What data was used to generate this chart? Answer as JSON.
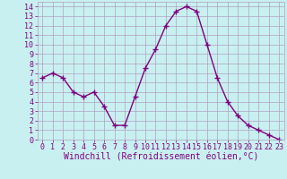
{
  "x": [
    0,
    1,
    2,
    3,
    4,
    5,
    6,
    7,
    8,
    9,
    10,
    11,
    12,
    13,
    14,
    15,
    16,
    17,
    18,
    19,
    20,
    21,
    22,
    23
  ],
  "y": [
    6.5,
    7.0,
    6.5,
    5.0,
    4.5,
    5.0,
    3.5,
    1.5,
    1.5,
    4.5,
    7.5,
    9.5,
    12.0,
    13.5,
    14.0,
    13.5,
    10.0,
    6.5,
    4.0,
    2.5,
    1.5,
    1.0,
    0.5,
    0.0
  ],
  "line_color": "#800080",
  "marker": "+",
  "marker_size": 4,
  "bg_color": "#c8f0f0",
  "grid_color": "#b0a0c0",
  "xlabel": "Windchill (Refroidissement éolien,°C)",
  "xlim": [
    -0.5,
    23.5
  ],
  "ylim": [
    0,
    14.5
  ],
  "xticks": [
    0,
    1,
    2,
    3,
    4,
    5,
    6,
    7,
    8,
    9,
    10,
    11,
    12,
    13,
    14,
    15,
    16,
    17,
    18,
    19,
    20,
    21,
    22,
    23
  ],
  "yticks": [
    0,
    1,
    2,
    3,
    4,
    5,
    6,
    7,
    8,
    9,
    10,
    11,
    12,
    13,
    14
  ],
  "tick_label_color": "#800080",
  "xlabel_color": "#800080",
  "xlabel_fontsize": 7,
  "tick_fontsize": 6,
  "line_width": 1.0
}
